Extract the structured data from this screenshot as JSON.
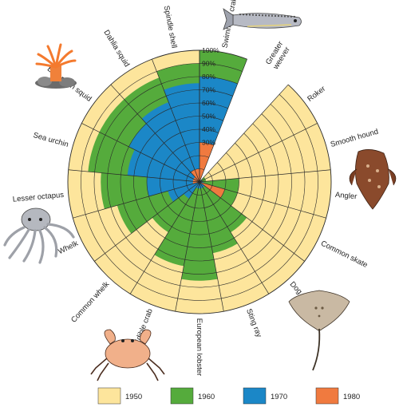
{
  "chart_data": {
    "type": "radar",
    "value_unit": "%",
    "rlim": [
      0,
      100
    ],
    "ring_labels": [
      "30%",
      "40%",
      "50%",
      "60%",
      "70%",
      "80%",
      "90%",
      "100%"
    ],
    "grid_ring_values": [
      10,
      20,
      30,
      40,
      50,
      60,
      70,
      80,
      90,
      100
    ],
    "grid": true,
    "legend_position": "bottom",
    "categories": [
      "Swimming crab",
      "Greater weever",
      "Roker",
      "Smooth hound",
      "Angler",
      "Common skate",
      "Dog fish",
      "Sting ray",
      "European lobster",
      "Edible crab",
      "Common whelk",
      "Whelk",
      "Lesser octapus",
      "Sea urchin",
      "European squid",
      "Dahlia squid",
      "Spindle shell"
    ],
    "category_label_lines": [
      [
        "Swimming crab"
      ],
      [
        "Greater",
        "weever"
      ],
      [
        "Roker"
      ],
      [
        "Smooth hound"
      ],
      [
        "Angler"
      ],
      [
        "Common skate"
      ],
      [
        "Dog fish"
      ],
      [
        "Sting ray"
      ],
      [
        "European lobster"
      ],
      [
        "Edible crab"
      ],
      [
        "Common whelk"
      ],
      [
        "Whelk"
      ],
      [
        "Lesser octapus"
      ],
      [
        "Sea urchin"
      ],
      [
        "European squid"
      ],
      [
        "Dahlia squid"
      ],
      [
        "Spindle shell"
      ]
    ],
    "series": [
      {
        "name": "1950",
        "color": "#fde59c",
        "values": [
          100,
          0,
          100,
          100,
          100,
          100,
          100,
          100,
          100,
          100,
          100,
          100,
          100,
          100,
          100,
          100,
          100
        ]
      },
      {
        "name": "1960",
        "color": "#55ab3c",
        "values": [
          100,
          0,
          5,
          5,
          30,
          30,
          45,
          55,
          75,
          65,
          45,
          65,
          75,
          85,
          85,
          85,
          90
        ]
      },
      {
        "name": "1970",
        "color": "#1b87c7",
        "values": [
          80,
          0,
          2,
          2,
          3,
          15,
          5,
          5,
          5,
          5,
          15,
          25,
          40,
          55,
          60,
          65,
          75
        ]
      },
      {
        "name": "1980",
        "color": "#f07a3f",
        "values": [
          30,
          0,
          0,
          0,
          0,
          20,
          0,
          0,
          0,
          0,
          0,
          0,
          5,
          5,
          5,
          10,
          10
        ]
      }
    ]
  }
}
